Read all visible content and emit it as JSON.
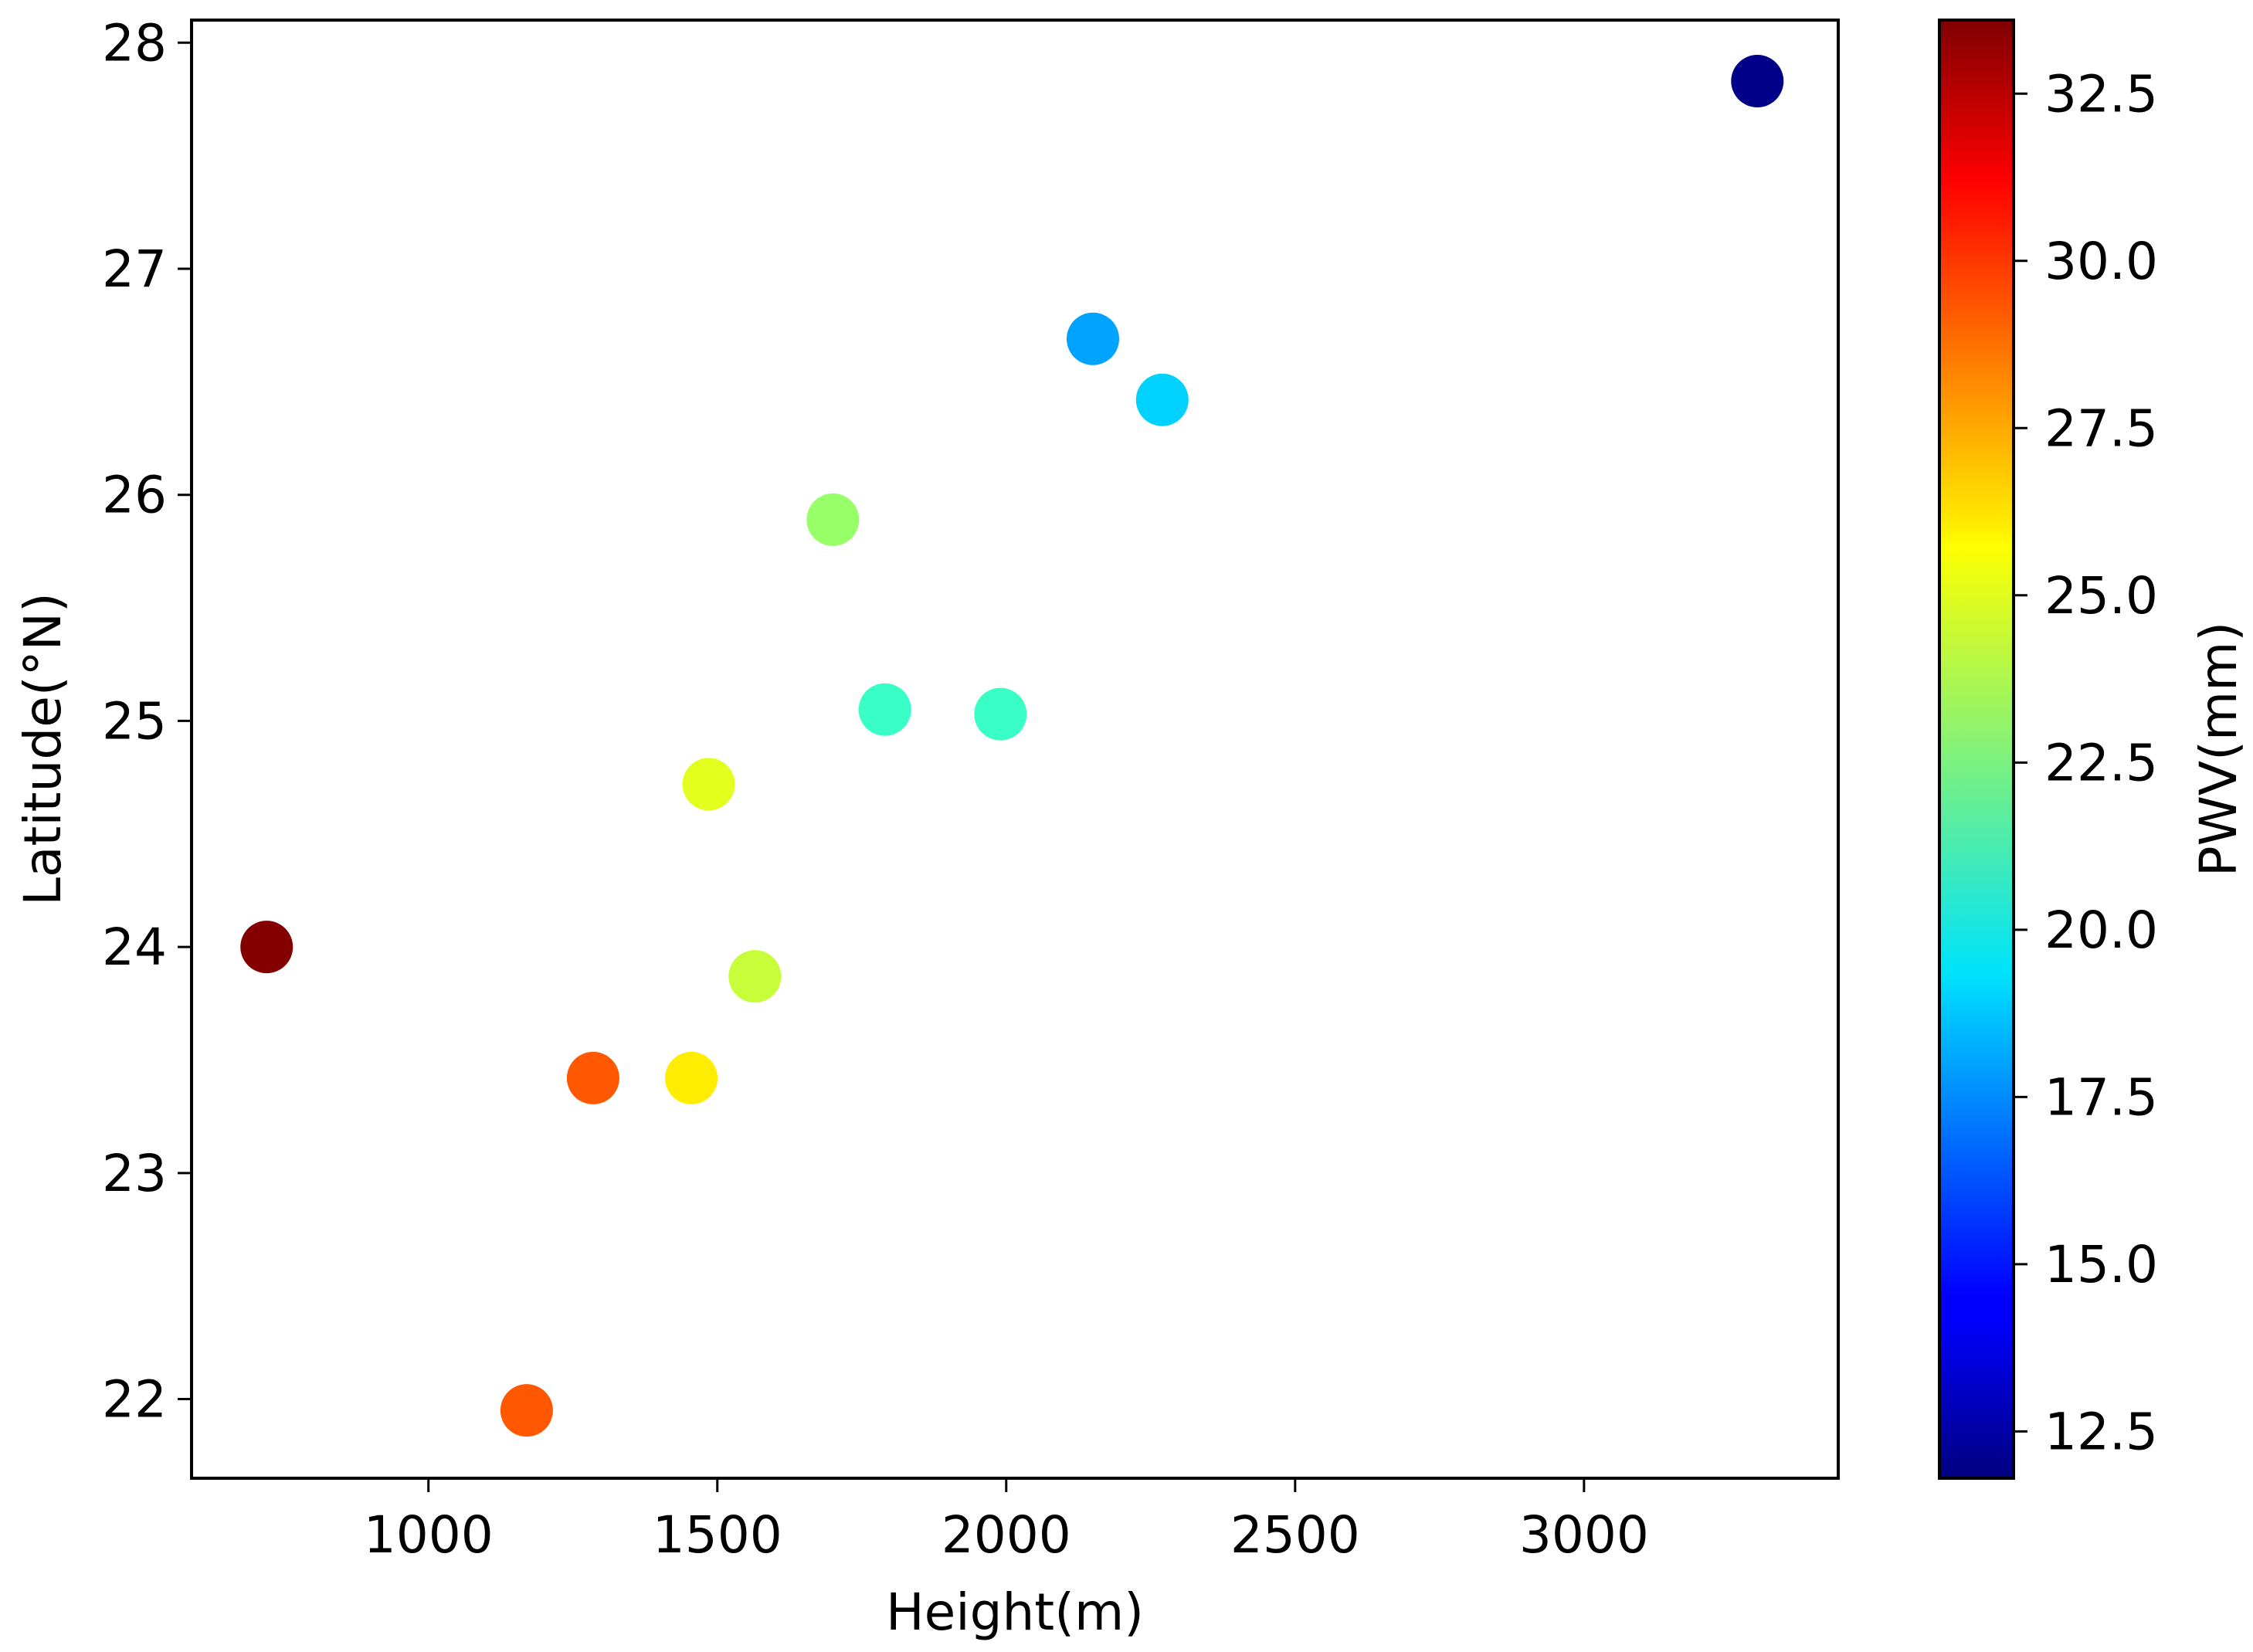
{
  "chart_data": {
    "type": "scatter",
    "xlabel": "Height(m)",
    "ylabel": "Latitude(°N)",
    "colorbar_label": "PWV(mm)",
    "xlim": [
      590,
      3440
    ],
    "ylim": [
      21.65,
      28.1
    ],
    "xticks": [
      1000,
      1500,
      2000,
      2500,
      3000
    ],
    "yticks": [
      22,
      23,
      24,
      25,
      26,
      27,
      28
    ],
    "colorbar_range": [
      11.8,
      33.6
    ],
    "colorbar_ticks": [
      12.5,
      15.0,
      17.5,
      20.0,
      22.5,
      25.0,
      27.5,
      30.0,
      32.5
    ],
    "colormap": "jet",
    "grid": false,
    "points": [
      {
        "x": 720,
        "y": 24.0,
        "pwv": 33.5
      },
      {
        "x": 1170,
        "y": 21.95,
        "pwv": 29.0
      },
      {
        "x": 1285,
        "y": 23.42,
        "pwv": 29.0
      },
      {
        "x": 1455,
        "y": 23.42,
        "pwv": 25.8
      },
      {
        "x": 1485,
        "y": 24.72,
        "pwv": 24.8
      },
      {
        "x": 1565,
        "y": 23.87,
        "pwv": 24.2
      },
      {
        "x": 1700,
        "y": 25.89,
        "pwv": 23.2
      },
      {
        "x": 1790,
        "y": 25.05,
        "pwv": 21.2
      },
      {
        "x": 1990,
        "y": 25.03,
        "pwv": 21.2
      },
      {
        "x": 2150,
        "y": 26.69,
        "pwv": 18.0
      },
      {
        "x": 2270,
        "y": 26.42,
        "pwv": 19.0
      },
      {
        "x": 3300,
        "y": 27.83,
        "pwv": 12.0
      }
    ]
  }
}
